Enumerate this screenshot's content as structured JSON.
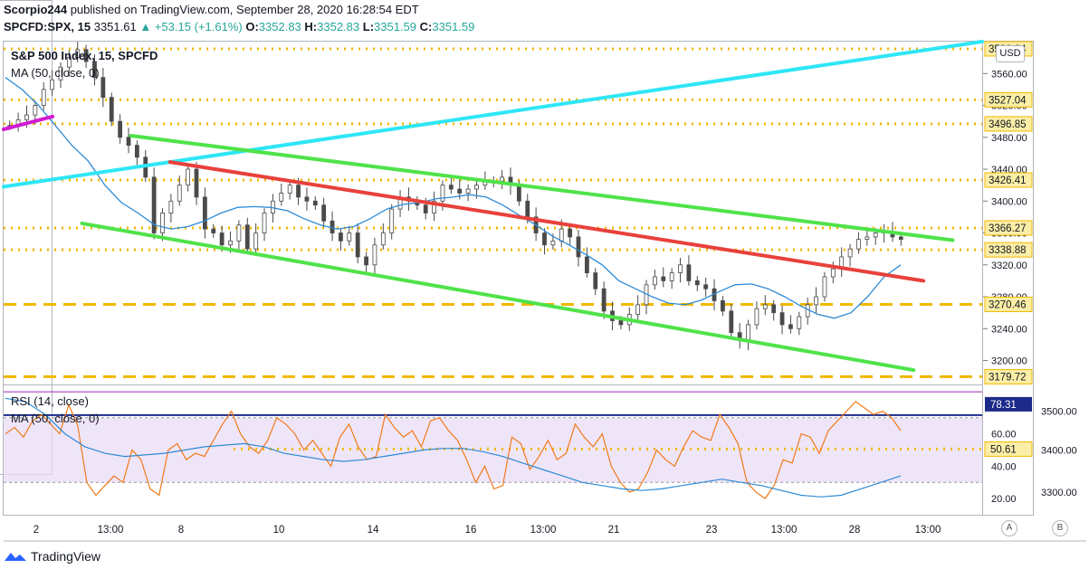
{
  "header": {
    "line1_user": "Scorpio244",
    "line1_rest": " published on TradingView.com, September 28, 2020 16:28:54 EDT",
    "symbol": "SPCFD:SPX, 15",
    "last": "3351.61",
    "change": "+53.15 (+1.61%)",
    "o_label": "O:",
    "o_val": "3352.83",
    "h_label": "H:",
    "h_val": "3352.83",
    "l_label": "L:",
    "l_val": "3351.59",
    "c_label": "C:",
    "c_val": "3351.59"
  },
  "legend": {
    "main": "S&P 500 Index, 15, SPCFD",
    "ma": "MA (50, close, 0)",
    "rsi": "RSI (14, close)",
    "rsi_ma": "MA (50, close, 0)"
  },
  "currency": "USD",
  "footer": {
    "brand": "TradingView",
    "btn_a": "A",
    "btn_b": "B"
  },
  "colors": {
    "candle": "#4a4a4a",
    "cyan": "#2ee6f6",
    "green": "#4fe34a",
    "red": "#e8413c",
    "ma": "#2e8bd6",
    "gold": "#f0b800",
    "navy": "#1c2a8a",
    "rsi": "#f07a1a",
    "magenta": "#d21ad2",
    "rsi_band": "#eadcf5"
  },
  "chart_data": [
    {
      "type": "candlestick",
      "title": "S&P 500 Index, 15, SPCFD",
      "ylim": [
        3170,
        3600
      ],
      "y_ticks": [
        3200,
        3240,
        3280,
        3320,
        3360,
        3400,
        3440,
        3480,
        3520,
        3560
      ],
      "y_tick_labels": [
        "3200.00",
        "3240.00",
        "3280.00",
        "3320.00",
        "3360.00",
        "3400.00",
        "3440.00",
        "3480.00",
        "3520.00",
        "3560.00"
      ],
      "x_tick_labels": [
        "2",
        "13:00",
        "8",
        "10",
        "14",
        "16",
        "13:00",
        "21",
        "23",
        "13:00",
        "28",
        "13:00"
      ],
      "horizontal_levels": [
        {
          "value": 3590.94,
          "label": "3590.94",
          "style": "dotted"
        },
        {
          "value": 3527.04,
          "label": "3527.04",
          "style": "dotted"
        },
        {
          "value": 3496.85,
          "label": "3496.85",
          "style": "dotted"
        },
        {
          "value": 3426.41,
          "label": "3426.41",
          "style": "dotted"
        },
        {
          "value": 3366.27,
          "label": "3366.27",
          "style": "dotted"
        },
        {
          "value": 3338.88,
          "label": "3338.88",
          "style": "dotted"
        },
        {
          "value": 3270.46,
          "label": "3270.46",
          "style": "dashed"
        },
        {
          "value": 3179.72,
          "label": "3179.72",
          "style": "dashed"
        }
      ],
      "price_path": [
        3495,
        3502,
        3508,
        3520,
        3540,
        3552,
        3568,
        3580,
        3590,
        3575,
        3555,
        3530,
        3500,
        3480,
        3470,
        3455,
        3430,
        3360,
        3385,
        3400,
        3420,
        3440,
        3405,
        3365,
        3360,
        3345,
        3350,
        3370,
        3340,
        3360,
        3385,
        3400,
        3410,
        3420,
        3405,
        3400,
        3395,
        3375,
        3360,
        3350,
        3360,
        3330,
        3320,
        3345,
        3360,
        3390,
        3405,
        3400,
        3395,
        3385,
        3400,
        3420,
        3415,
        3410,
        3415,
        3420,
        3425,
        3425,
        3430,
        3420,
        3400,
        3380,
        3360,
        3345,
        3350,
        3365,
        3355,
        3330,
        3310,
        3290,
        3262,
        3250,
        3245,
        3258,
        3270,
        3295,
        3305,
        3300,
        3310,
        3320,
        3300,
        3295,
        3290,
        3275,
        3262,
        3235,
        3225,
        3245,
        3265,
        3270,
        3260,
        3245,
        3240,
        3255,
        3270,
        3280,
        3305,
        3315,
        3330,
        3340,
        3352,
        3355,
        3360,
        3362,
        3355,
        3352
      ],
      "ma50": [
        3555,
        3540,
        3520,
        3495,
        3470,
        3450,
        3420,
        3398,
        3385,
        3370,
        3365,
        3368,
        3375,
        3385,
        3392,
        3393,
        3392,
        3388,
        3378,
        3370,
        3365,
        3368,
        3378,
        3390,
        3396,
        3398,
        3403,
        3405,
        3408,
        3405,
        3395,
        3382,
        3370,
        3356,
        3345,
        3333,
        3320,
        3300,
        3290,
        3280,
        3272,
        3270,
        3276,
        3286,
        3295,
        3296,
        3290,
        3280,
        3268,
        3258,
        3253,
        3260,
        3280,
        3305,
        3320
      ],
      "trend_lines": [
        {
          "name": "cyan-trendline",
          "from": [
            0,
            3418
          ],
          "to": [
            1,
            3600
          ]
        },
        {
          "name": "green-upper-channel",
          "from": [
            0.13,
            3482
          ],
          "to": [
            0.97,
            3351
          ]
        },
        {
          "name": "red-trendline",
          "from": [
            0.17,
            3449
          ],
          "to": [
            0.94,
            3300
          ]
        },
        {
          "name": "green-lower-channel",
          "from": [
            0.08,
            3372
          ],
          "to": [
            0.93,
            3188
          ]
        },
        {
          "name": "magenta-segment",
          "from": [
            0,
            3490
          ],
          "to": [
            0.05,
            3506
          ]
        }
      ]
    },
    {
      "type": "line",
      "title": "RSI (14, close)",
      "ylim": [
        10,
        90
      ],
      "y_ticks": [
        20,
        40,
        60
      ],
      "y_tick_labels": [
        "20.00",
        "40.00",
        "60.00"
      ],
      "secondary_ticks": [
        "3500.00",
        "3400.00",
        "3300.00"
      ],
      "band": [
        30,
        70
      ],
      "levels": [
        {
          "value": 78.31,
          "label": "78.31"
        },
        {
          "value": 50.61,
          "label": "50.61"
        }
      ],
      "rsi_path": [
        60,
        64,
        58,
        68,
        72,
        66,
        60,
        78,
        65,
        30,
        22,
        28,
        34,
        30,
        50,
        44,
        26,
        22,
        50,
        54,
        44,
        48,
        46,
        56,
        66,
        74,
        60,
        52,
        48,
        56,
        70,
        66,
        60,
        50,
        56,
        48,
        40,
        58,
        66,
        52,
        44,
        46,
        72,
        64,
        58,
        62,
        52,
        68,
        70,
        62,
        56,
        44,
        30,
        40,
        26,
        28,
        58,
        54,
        38,
        46,
        56,
        44,
        48,
        66,
        58,
        52,
        60,
        40,
        30,
        24,
        26,
        36,
        50,
        44,
        40,
        52,
        62,
        58,
        56,
        72,
        64,
        54,
        30,
        24,
        20,
        28,
        44,
        42,
        60,
        58,
        48,
        62,
        68,
        74,
        80,
        76,
        72,
        74,
        70,
        62
      ],
      "rsi_ma": [
        82,
        80,
        72,
        60,
        52,
        48,
        46,
        47,
        48,
        50,
        52,
        53,
        54,
        52,
        48,
        46,
        44,
        43,
        44,
        46,
        48,
        50,
        51,
        51,
        49,
        46,
        42,
        38,
        34,
        30,
        28,
        26,
        25,
        26,
        28,
        30,
        32,
        30,
        28,
        25,
        22,
        21,
        22,
        26,
        30,
        34
      ]
    }
  ]
}
